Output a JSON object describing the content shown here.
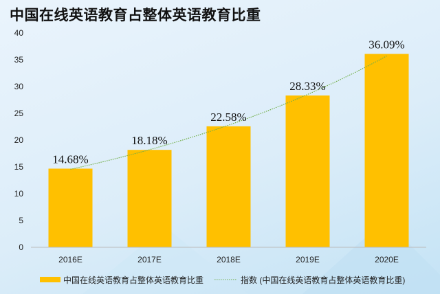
{
  "chart_data": {
    "type": "bar",
    "title": "中国在线英语教育占整体英语教育比重",
    "categories": [
      "2016E",
      "2017E",
      "2018E",
      "2019E",
      "2020E"
    ],
    "series": [
      {
        "name": "中国在线英语教育占整体英语教育比重",
        "values": [
          14.68,
          18.18,
          22.58,
          28.33,
          36.09
        ],
        "color": "#ffc000"
      },
      {
        "name": "指数 (中国在线英语教育占整体英语教育比重)",
        "type": "exponential-trendline",
        "color": "#70ad47"
      }
    ],
    "data_labels": [
      "14.68%",
      "18.18%",
      "22.58%",
      "28.33%",
      "36.09%"
    ],
    "yticks": [
      0,
      5,
      10,
      15,
      20,
      25,
      30,
      35,
      40
    ],
    "ylim": [
      0,
      40
    ],
    "grid": false,
    "legend": "bottom"
  }
}
